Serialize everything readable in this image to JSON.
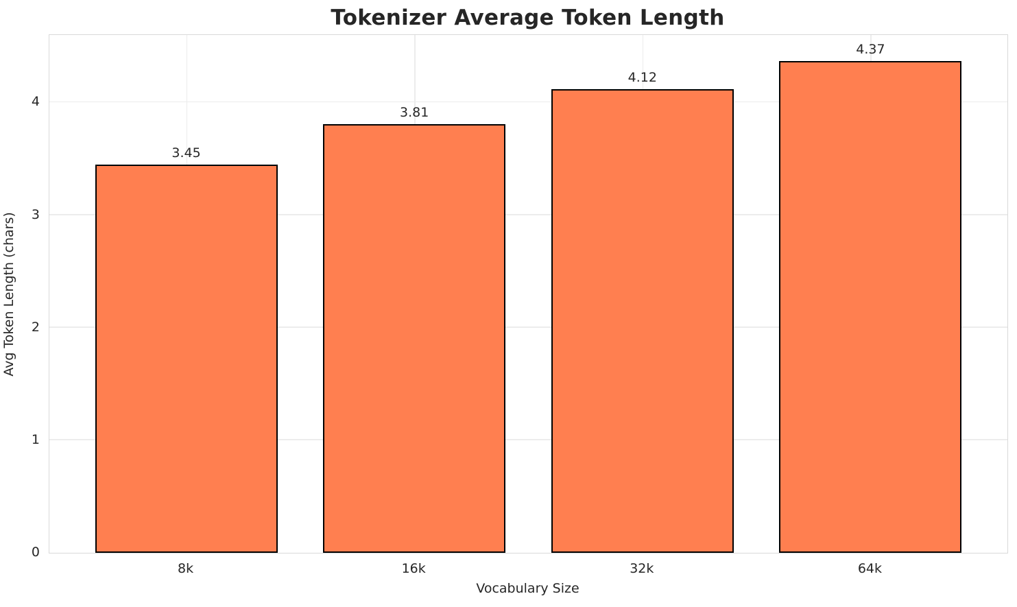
{
  "chart_data": {
    "type": "bar",
    "title": "Tokenizer Average Token Length",
    "xlabel": "Vocabulary Size",
    "ylabel": "Avg Token Length (chars)",
    "categories": [
      "8k",
      "16k",
      "32k",
      "64k"
    ],
    "values": [
      3.45,
      3.81,
      4.12,
      4.37
    ],
    "value_labels": [
      "3.45",
      "3.81",
      "4.12",
      "4.37"
    ],
    "yticks": [
      0,
      1,
      2,
      3,
      4
    ],
    "ylim": [
      0,
      4.6
    ],
    "xlim": [
      -0.6,
      3.6
    ],
    "bar_width": 0.8,
    "grid": true,
    "legend": "none",
    "colors": {
      "bar_fill": "#FF7F50",
      "bar_edge": "#000000",
      "grid": "#ECECEC",
      "spine": "#D9D9D9",
      "text": "#262626",
      "background": "#FFFFFF"
    }
  }
}
